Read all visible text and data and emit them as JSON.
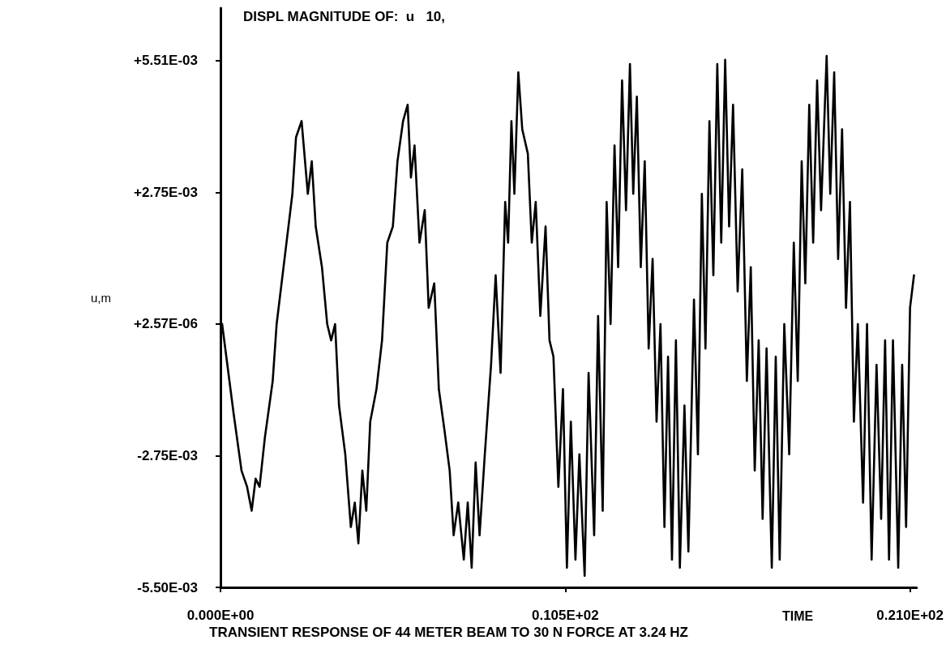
{
  "chart_data": {
    "type": "line",
    "title": "DISPL MAGNITUDE OF:  u   10,",
    "xlabel": "TIME",
    "ylabel": "u,m",
    "annotations": [
      "TRANSIENT RESPONSE OF 44 METER BEAM TO 30 N FORCE AT 3.24 HZ"
    ],
    "xlim": [
      0,
      21.2
    ],
    "xticks": [
      {
        "value": 0,
        "label": "0.000E+00"
      },
      {
        "value": 10.5,
        "label": "0.105E+02"
      },
      {
        "value": 21,
        "label": "0.210E+02"
      }
    ],
    "ylim": [
      -0.0055,
      0.0066
    ],
    "yticks": [
      {
        "value": -0.0055,
        "label": "-5.50E-03"
      },
      {
        "value": -0.00275,
        "label": "-2.75E-03"
      },
      {
        "value": 2.57e-06,
        "label": "+2.57E-06"
      },
      {
        "value": 0.00275,
        "label": "+2.75E-03"
      },
      {
        "value": 0.00551,
        "label": "+5.51E-03"
      }
    ],
    "grid": false,
    "marker": "none",
    "line_style": "solid",
    "x": [
      0.05,
      0.4,
      0.64,
      0.81,
      0.95,
      1.07,
      1.19,
      1.35,
      1.59,
      1.71,
      1.95,
      2.19,
      2.3,
      2.47,
      2.66,
      2.78,
      2.9,
      3.09,
      3.25,
      3.37,
      3.49,
      3.61,
      3.8,
      3.97,
      4.09,
      4.2,
      4.32,
      4.44,
      4.56,
      4.75,
      4.92,
      5.08,
      5.25,
      5.39,
      5.56,
      5.7,
      5.8,
      5.91,
      6.06,
      6.22,
      6.34,
      6.51,
      6.65,
      6.82,
      6.98,
      7.1,
      7.24,
      7.41,
      7.53,
      7.65,
      7.77,
      7.89,
      8.05,
      8.24,
      8.38,
      8.53,
      8.67,
      8.76,
      8.86,
      8.95,
      9.07,
      9.19,
      9.36,
      9.48,
      9.6,
      9.74,
      9.9,
      10.02,
      10.14,
      10.29,
      10.43,
      10.55,
      10.67,
      10.81,
      10.93,
      11.09,
      11.21,
      11.38,
      11.5,
      11.64,
      11.76,
      11.88,
      12.0,
      12.11,
      12.23,
      12.35,
      12.47,
      12.57,
      12.68,
      12.8,
      12.92,
      13.04,
      13.16,
      13.28,
      13.4,
      13.52,
      13.63,
      13.75,
      13.87,
      13.99,
      14.13,
      14.25,
      14.42,
      14.54,
      14.66,
      14.77,
      14.89,
      15.01,
      15.13,
      15.25,
      15.37,
      15.49,
      15.61,
      15.75,
      15.89,
      16.03,
      16.15,
      16.27,
      16.39,
      16.51,
      16.63,
      16.79,
      16.91,
      17.03,
      17.17,
      17.32,
      17.46,
      17.58,
      17.7,
      17.81,
      17.93,
      18.05,
      18.17,
      18.29,
      18.46,
      18.57,
      18.69,
      18.81,
      18.93,
      19.05,
      19.17,
      19.29,
      19.41,
      19.57,
      19.69,
      19.83,
      19.98,
      20.12,
      20.24,
      20.36,
      20.48,
      20.64,
      20.76,
      20.88,
      21.0,
      21.12
    ],
    "series": [
      {
        "color": "#000000",
        "values": [
          0,
          -0.00187,
          -0.00306,
          -0.0034,
          -0.0039,
          -0.00323,
          -0.0034,
          -0.00238,
          -0.00119,
          0,
          0.00136,
          0.00272,
          0.0039,
          0.00424,
          0.00272,
          0.0034,
          0.00204,
          0.00119,
          0,
          -0.00034,
          0,
          -0.0017,
          -0.00272,
          -0.00424,
          -0.00373,
          -0.00458,
          -0.00306,
          -0.0039,
          -0.00204,
          -0.00136,
          -0.00034,
          0.0017,
          0.00204,
          0.0034,
          0.00424,
          0.00458,
          0.00306,
          0.00373,
          0.0017,
          0.00238,
          0.00034,
          0.00085,
          -0.00136,
          -0.00221,
          -0.00306,
          -0.00441,
          -0.00373,
          -0.00492,
          -0.00373,
          -0.00509,
          -0.00289,
          -0.00441,
          -0.00272,
          -0.00085,
          0.00102,
          -0.00102,
          0.00255,
          0.0017,
          0.00424,
          0.00272,
          0.00526,
          0.00407,
          0.00356,
          0.0017,
          0.00255,
          0.00017,
          0.00204,
          -0.00034,
          -0.00068,
          -0.0034,
          -0.00136,
          -0.00509,
          -0.00204,
          -0.00492,
          -0.00272,
          -0.00526,
          -0.00102,
          -0.00441,
          0.00017,
          -0.0039,
          0.00255,
          0,
          0.00373,
          0.00119,
          0.00509,
          0.00238,
          0.00543,
          0.00272,
          0.00475,
          0.00119,
          0.0034,
          -0.00051,
          0.00136,
          -0.00204,
          0,
          -0.00424,
          -0.00068,
          -0.00492,
          -0.00034,
          -0.00509,
          -0.0017,
          -0.00475,
          0.00051,
          -0.00272,
          0.00272,
          -0.00051,
          0.00424,
          0.00102,
          0.00543,
          0.0017,
          0.00552,
          0.00204,
          0.00458,
          0.00068,
          0.00323,
          -0.00119,
          0.00119,
          -0.00306,
          -0.00034,
          -0.00407,
          -0.00051,
          -0.00509,
          -0.00068,
          -0.00492,
          0,
          -0.00272,
          0.0017,
          -0.00119,
          0.0034,
          0.00085,
          0.00458,
          0.0017,
          0.00509,
          0.00238,
          0.0056,
          0.00272,
          0.00526,
          0.00136,
          0.00407,
          0.00034,
          0.00255,
          -0.00204,
          0,
          -0.00373,
          0,
          -0.00492,
          -0.00085,
          -0.00407,
          -0.00034,
          -0.00492,
          -0.00034,
          -0.00509,
          -0.00085,
          -0.00424,
          0.00034,
          0.00102
        ]
      }
    ]
  }
}
